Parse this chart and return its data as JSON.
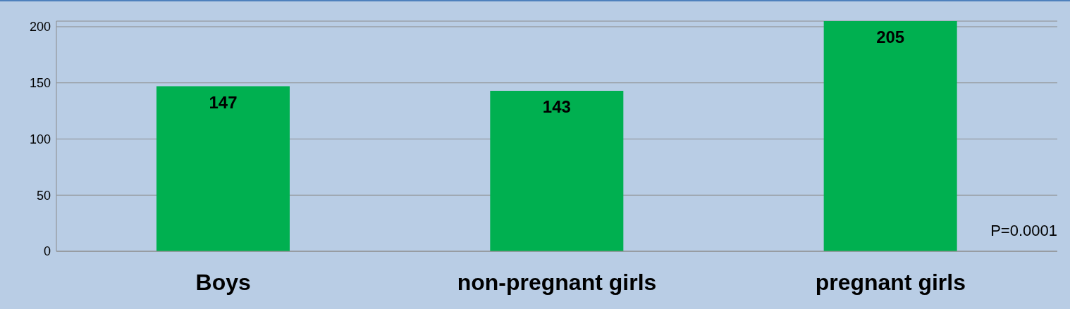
{
  "chart_data": {
    "type": "bar",
    "categories": [
      "Boys",
      "non-pregnant girls",
      "pregnant girls"
    ],
    "values": [
      147,
      143,
      205
    ],
    "color": "#00b050",
    "ylim": [
      0,
      205
    ],
    "yticks": [
      0,
      50,
      100,
      150,
      200
    ],
    "grid": "y",
    "data_labels": true,
    "annotations": [
      "P=0.0001"
    ]
  }
}
